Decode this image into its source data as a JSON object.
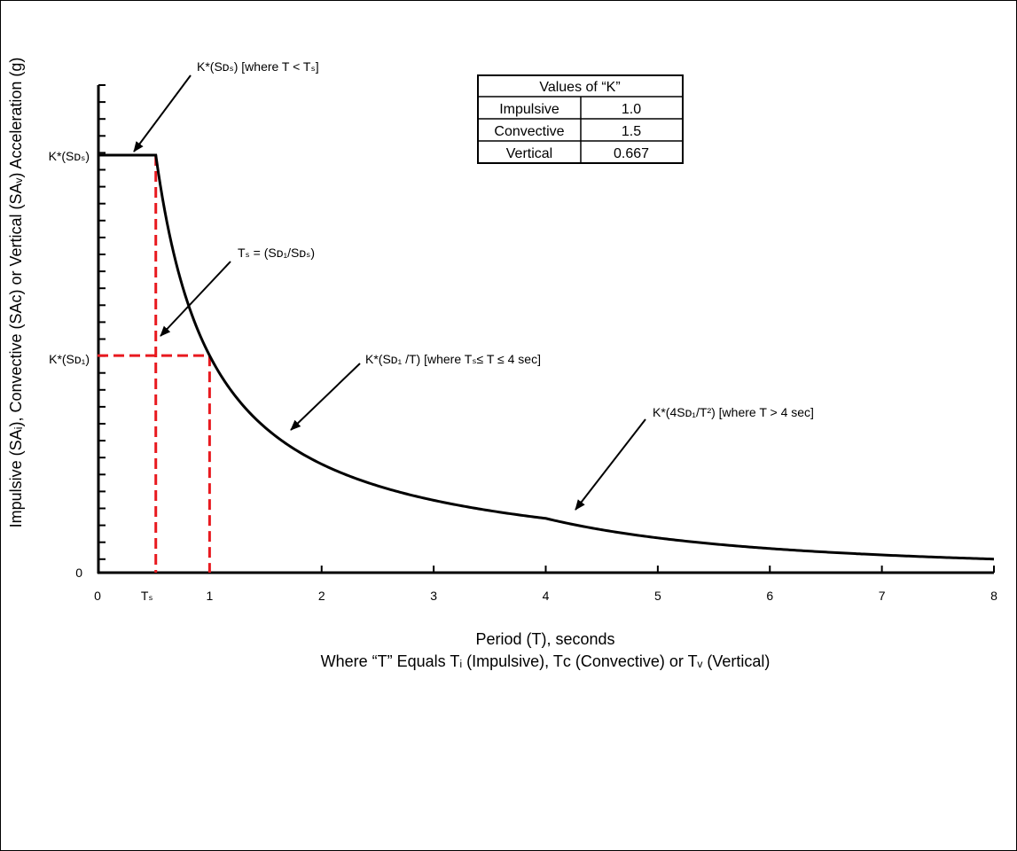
{
  "chart_data": {
    "type": "line",
    "title": "",
    "xlabel": "Period (T), seconds",
    "xlabel_line2": "Where “T” Equals Tᵢ (Impulsive), Tᴄ (Convective) or Tᵥ (Vertical)",
    "ylabel": "Impulsive (SAᵢ), Convective (SAᴄ) or Vertical (SAᵥ) Acceleration (g)",
    "xlim": [
      0,
      8
    ],
    "x_ticks": [
      "0",
      "1",
      "2",
      "3",
      "4",
      "5",
      "6",
      "7",
      "8"
    ],
    "x_tick_ts": "Tₛ",
    "y_ticks": {
      "zero": "0",
      "sds": "K*(Sᴅₛ)",
      "sd1": "K*(Sᴅ₁)"
    },
    "parameters": {
      "Ts": 0.52,
      "SDS": 1.0,
      "SD1": 0.52
    },
    "series": [
      {
        "segments": [
          {
            "from": 0,
            "to": 0.52,
            "formula": "K*(SDS)"
          },
          {
            "from": 0.52,
            "to": 4,
            "formula": "K*(SD1/T)"
          },
          {
            "from": 4,
            "to": 8,
            "formula": "K*(4SD1/T^2)"
          }
        ],
        "color": "#000000"
      }
    ],
    "reference_lines_color": "#e8191f",
    "annotations": {
      "a1": "K*(Sᴅₛ) [where T < Tₛ]",
      "a2": "Tₛ = (Sᴅ₁/Sᴅₛ)",
      "a3": "K*(Sᴅ₁ /T) [where Tₛ≤ T ≤ 4 sec]",
      "a4": "K*(4Sᴅ₁/T²) [where T > 4 sec]"
    },
    "k_table": {
      "header": "Values of “K”",
      "rows": [
        {
          "label": "Impulsive",
          "value": "1.0"
        },
        {
          "label": "Convective",
          "value": "1.5"
        },
        {
          "label": "Vertical",
          "value": "0.667"
        }
      ]
    }
  }
}
